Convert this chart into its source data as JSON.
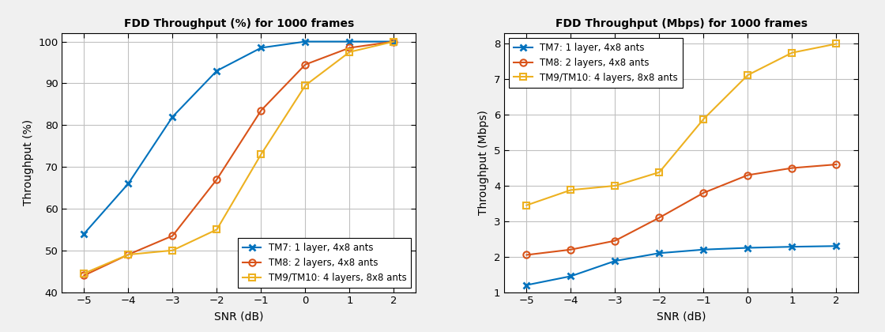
{
  "snr": [
    -5,
    -4,
    -3,
    -2,
    -1,
    0,
    1,
    2
  ],
  "plot1": {
    "title": "FDD Throughput (%) for 1000 frames",
    "xlabel": "SNR (dB)",
    "ylabel": "Throughput (%)",
    "ylim": [
      40,
      102
    ],
    "yticks": [
      40,
      50,
      60,
      70,
      80,
      90,
      100
    ],
    "tm7": [
      54,
      66,
      82,
      93,
      98.5,
      100,
      100,
      100
    ],
    "tm8": [
      44,
      49,
      53.5,
      67,
      83.5,
      94.5,
      98.5,
      100
    ],
    "tm9": [
      44.5,
      49,
      50,
      55,
      73,
      89.5,
      97.5,
      100
    ]
  },
  "plot2": {
    "title": "FDD Throughput (Mbps) for 1000 frames",
    "xlabel": "SNR (dB)",
    "ylabel": "Throughput (Mbps)",
    "ylim": [
      1,
      8.3
    ],
    "yticks": [
      1,
      2,
      3,
      4,
      5,
      6,
      7,
      8
    ],
    "tm7": [
      1.2,
      1.45,
      1.88,
      2.1,
      2.2,
      2.25,
      2.28,
      2.3
    ],
    "tm8": [
      2.05,
      2.2,
      2.45,
      3.1,
      3.8,
      4.3,
      4.5,
      4.6
    ],
    "tm9": [
      3.45,
      3.88,
      4.0,
      4.38,
      5.88,
      7.12,
      7.75,
      8.0
    ]
  },
  "tm7_color": "#0072BD",
  "tm8_color": "#D95319",
  "tm9_color": "#EDB120",
  "tm7_label": "TM7: 1 layer, 4x8 ants",
  "tm8_label": "TM8: 2 layers, 4x8 ants",
  "tm9_label": "TM9/TM10: 4 layers, 8x8 ants",
  "tm7_marker": "x",
  "tm8_marker": "o",
  "tm9_marker": "s",
  "linewidth": 1.5,
  "markersize": 6,
  "grid_color": "#c0c0c0",
  "bg_color": "#ffffff",
  "fig_bg_color": "#f0f0f0"
}
